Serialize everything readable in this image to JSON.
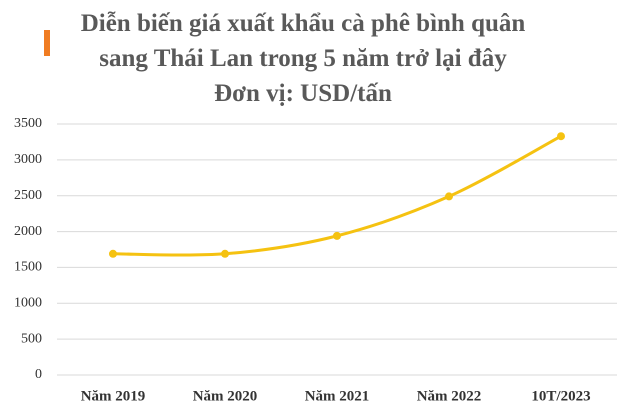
{
  "chart_data": {
    "type": "line",
    "title": "Diễn biến giá xuất khẩu cà phê bình quân sang Thái Lan trong 5 năm trở lại đây",
    "subtitle": "Đơn vị: USD/tấn",
    "categories": [
      "Năm 2019",
      "Năm 2020",
      "Năm 2021",
      "Năm 2022",
      "10T/2023"
    ],
    "values": [
      1690,
      1690,
      1940,
      2490,
      3330
    ],
    "color": "#f5c211",
    "smooth": true,
    "ylim": [
      0,
      3500
    ],
    "yticks": [
      0,
      500,
      1000,
      1500,
      2000,
      2500,
      3000,
      3500
    ],
    "grid": true
  }
}
